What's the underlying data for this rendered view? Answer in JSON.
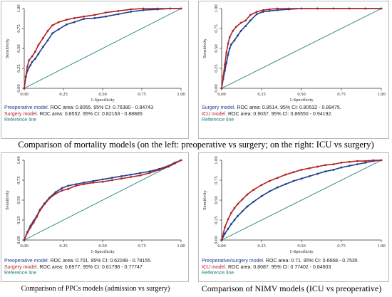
{
  "charts": [
    {
      "chart_data": {
        "type": "line",
        "xlabel": "1-Specificity",
        "ylabel": "Sensitivity",
        "xlim": [
          0,
          1
        ],
        "ylim": [
          0,
          1
        ],
        "xticks": [
          "0.00",
          "0.25",
          "0.50",
          "0.75",
          "1.00"
        ],
        "yticks": [
          "0.00",
          "0.25",
          "0.50",
          "0.75",
          "1.00"
        ],
        "series": [
          {
            "name": "Preoperative model",
            "color": "#1f3f8f",
            "x": [
              0,
              0.01,
              0.02,
              0.04,
              0.05,
              0.07,
              0.09,
              0.12,
              0.15,
              0.18,
              0.22,
              0.27,
              0.32,
              0.38,
              0.45,
              0.52,
              0.6,
              0.68,
              0.76,
              0.85,
              0.93,
              1
            ],
            "y": [
              0,
              0.14,
              0.22,
              0.29,
              0.33,
              0.37,
              0.43,
              0.52,
              0.6,
              0.69,
              0.74,
              0.8,
              0.83,
              0.87,
              0.88,
              0.9,
              0.93,
              0.96,
              0.98,
              0.99,
              1,
              1
            ]
          },
          {
            "name": "Surgery model",
            "color": "#b22222",
            "x": [
              0,
              0.01,
              0.02,
              0.03,
              0.05,
              0.07,
              0.09,
              0.12,
              0.15,
              0.18,
              0.22,
              0.27,
              0.32,
              0.38,
              0.45,
              0.52,
              0.6,
              0.68,
              0.76,
              0.85,
              0.93,
              1
            ],
            "y": [
              0,
              0.15,
              0.27,
              0.35,
              0.4,
              0.46,
              0.54,
              0.63,
              0.72,
              0.79,
              0.83,
              0.86,
              0.88,
              0.9,
              0.92,
              0.95,
              0.97,
              0.99,
              1,
              1,
              1,
              1
            ]
          }
        ],
        "reference_line": true
      },
      "legend": [
        {
          "name": "Preoperative model",
          "text": ". ROC area: 0.8055. 95% CI: 0.76380 - 0.84743",
          "color": "#1f3f8f"
        },
        {
          "name": "Surgery model",
          "text": ". ROC area: 0.8552. 95% CI: 0.82163 - 0.88885",
          "color": "#b22222"
        },
        {
          "name": "Reference line",
          "text": "",
          "color": "#1f7f7f"
        }
      ]
    },
    {
      "chart_data": {
        "type": "line",
        "xlabel": "1-Specificity",
        "ylabel": "Sensitivity",
        "xlim": [
          0,
          1
        ],
        "ylim": [
          0,
          1
        ],
        "xticks": [
          "0.00",
          "0.25",
          "0.50",
          "0.75",
          "1.00"
        ],
        "yticks": [
          "0.00",
          "0.25",
          "0.50",
          "0.75",
          "1.00"
        ],
        "series": [
          {
            "name": "Surgery model",
            "color": "#1f3f8f",
            "x": [
              0,
              0.01,
              0.02,
              0.03,
              0.04,
              0.05,
              0.06,
              0.08,
              0.1,
              0.12,
              0.15,
              0.18,
              0.22,
              0.26,
              0.3,
              0.35,
              0.42,
              0.5,
              0.6,
              0.7,
              0.8,
              0.9,
              1
            ],
            "y": [
              0,
              0.12,
              0.22,
              0.32,
              0.42,
              0.5,
              0.55,
              0.6,
              0.66,
              0.72,
              0.78,
              0.85,
              0.93,
              0.96,
              0.97,
              0.98,
              0.99,
              1,
              1,
              1,
              1,
              1,
              1
            ]
          },
          {
            "name": "ICU model",
            "color": "#b22222",
            "x": [
              0,
              0.01,
              0.02,
              0.03,
              0.04,
              0.05,
              0.07,
              0.09,
              0.12,
              0.15,
              0.18,
              0.22,
              0.26,
              0.3,
              0.35,
              0.42,
              0.5,
              0.6,
              0.7,
              0.8,
              0.9,
              1
            ],
            "y": [
              0,
              0.15,
              0.3,
              0.45,
              0.56,
              0.64,
              0.72,
              0.77,
              0.82,
              0.85,
              0.92,
              0.96,
              0.98,
              0.99,
              1,
              1,
              1,
              1,
              1,
              1,
              1,
              1
            ]
          }
        ],
        "reference_line": true
      },
      "legend": [
        {
          "name": "Surgery model",
          "text": ". ROC area: 0.8514. 95% CI: 0.80532 - 0.89475.",
          "color": "#1f3f8f"
        },
        {
          "name": "ICU model",
          "text": ". ROC area: 0.9037. 95% CI: 0.86550 - 0.94192.",
          "color": "#b22222"
        },
        {
          "name": "Reference line",
          "text": "",
          "color": "#1f7f7f"
        }
      ]
    },
    {
      "chart_data": {
        "type": "line",
        "xlabel": "1-Specificity",
        "ylabel": "Sensitivity",
        "xlim": [
          0,
          1
        ],
        "ylim": [
          0,
          1
        ],
        "xticks": [
          "0.00",
          "0.25",
          "0.50",
          "0.75",
          "1.00"
        ],
        "yticks": [
          "0.00",
          "0.25",
          "0.50",
          "0.75",
          "1.00"
        ],
        "series": [
          {
            "name": "Preoperative model",
            "color": "#1f3f8f",
            "x": [
              0,
              0.02,
              0.04,
              0.06,
              0.08,
              0.1,
              0.13,
              0.16,
              0.2,
              0.24,
              0.28,
              0.33,
              0.38,
              0.44,
              0.5,
              0.56,
              0.62,
              0.68,
              0.74,
              0.8,
              0.86,
              0.92,
              0.96,
              1
            ],
            "y": [
              0,
              0.1,
              0.18,
              0.24,
              0.3,
              0.38,
              0.46,
              0.53,
              0.6,
              0.65,
              0.68,
              0.7,
              0.72,
              0.74,
              0.76,
              0.78,
              0.8,
              0.82,
              0.84,
              0.86,
              0.89,
              0.93,
              0.97,
              1
            ]
          },
          {
            "name": "Surgery model",
            "color": "#b22222",
            "x": [
              0,
              0.02,
              0.04,
              0.06,
              0.08,
              0.1,
              0.13,
              0.16,
              0.2,
              0.24,
              0.28,
              0.33,
              0.38,
              0.44,
              0.5,
              0.56,
              0.62,
              0.68,
              0.74,
              0.8,
              0.86,
              0.92,
              0.96,
              1
            ],
            "y": [
              0,
              0.09,
              0.16,
              0.22,
              0.29,
              0.37,
              0.45,
              0.52,
              0.58,
              0.62,
              0.64,
              0.68,
              0.7,
              0.72,
              0.73,
              0.75,
              0.77,
              0.79,
              0.81,
              0.84,
              0.88,
              0.92,
              0.96,
              1
            ]
          }
        ],
        "reference_line": true
      },
      "legend": [
        {
          "name": "Preoperative model",
          "text": ". ROC area: 0.701. 95% CI: 0.62048 - 0.78155",
          "color": "#1f3f8f"
        },
        {
          "name": "Surgery model",
          "text": ". ROC area: 0.6977. 95% CI: 0.61798 - 0.77747",
          "color": "#b22222"
        },
        {
          "name": "Reference line",
          "text": "",
          "color": "#1f7f7f"
        }
      ]
    },
    {
      "chart_data": {
        "type": "line",
        "xlabel": "1-Specificity",
        "ylabel": "Sensitivity",
        "xlim": [
          0,
          1
        ],
        "ylim": [
          0,
          1
        ],
        "xticks": [
          "0.00",
          "0.25",
          "0.50",
          "0.75",
          "1.00"
        ],
        "yticks": [
          "0.00",
          "0.25",
          "0.50",
          "0.75",
          "1.00"
        ],
        "series": [
          {
            "name": "Preoperative/surgery model",
            "color": "#1f3f8f",
            "x": [
              0,
              0.02,
              0.04,
              0.06,
              0.08,
              0.1,
              0.13,
              0.16,
              0.2,
              0.25,
              0.3,
              0.35,
              0.4,
              0.45,
              0.5,
              0.55,
              0.6,
              0.65,
              0.7,
              0.75,
              0.8,
              0.85,
              0.9,
              0.95,
              1
            ],
            "y": [
              0,
              0.08,
              0.14,
              0.2,
              0.25,
              0.3,
              0.36,
              0.42,
              0.48,
              0.55,
              0.61,
              0.66,
              0.7,
              0.74,
              0.77,
              0.8,
              0.83,
              0.86,
              0.88,
              0.91,
              0.93,
              0.95,
              0.97,
              0.99,
              1
            ]
          },
          {
            "name": "ICU model",
            "color": "#b22222",
            "x": [
              0,
              0.02,
              0.04,
              0.06,
              0.08,
              0.1,
              0.13,
              0.16,
              0.2,
              0.25,
              0.3,
              0.35,
              0.4,
              0.45,
              0.5,
              0.55,
              0.6,
              0.65,
              0.7,
              0.75,
              0.8,
              0.85,
              0.9,
              0.95,
              1
            ],
            "y": [
              0,
              0.16,
              0.26,
              0.34,
              0.4,
              0.45,
              0.51,
              0.57,
              0.63,
              0.69,
              0.74,
              0.78,
              0.82,
              0.85,
              0.88,
              0.9,
              0.92,
              0.94,
              0.95,
              0.97,
              0.98,
              0.99,
              0.99,
              1,
              1
            ]
          }
        ],
        "reference_line": true
      },
      "legend": [
        {
          "name": "Preoperative/surgery model",
          "text": ". ROC area: 0.71. 95% CI: 0.6668 - 0.7535",
          "color": "#1f3f8f"
        },
        {
          "name": "ICU model",
          "text": ". ROC area: 0.8087. 95% CI: 0.77402 - 0.84603",
          "color": "#b22222"
        },
        {
          "name": "Reference line",
          "text": "",
          "color": "#1f7f7f"
        }
      ]
    }
  ],
  "captions": {
    "top": "Comparison of mortality models (on the left: preoperative vs surgery; on the right: ICU vs surgery)",
    "bottom_left": "Comparison of PPCs models (admission vs surgery)",
    "bottom_right": "Comparison of NIMV models (ICU vs preoperative)"
  }
}
